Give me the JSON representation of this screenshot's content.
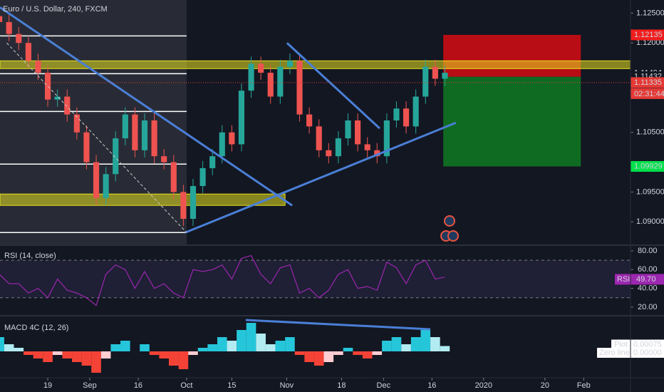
{
  "chart_data": [
    {
      "type": "candlestick",
      "title": "Euro / U.S. Dollar, 240, FXCM",
      "x": [
        3,
        6,
        9,
        12,
        15,
        18,
        21,
        24,
        27,
        30,
        33,
        36,
        39,
        42,
        45,
        48,
        51,
        54,
        57,
        60,
        63,
        66,
        69,
        72,
        75,
        78,
        81,
        84,
        87,
        90,
        93,
        96,
        99,
        102,
        105,
        108,
        111,
        114,
        117,
        120,
        123,
        126,
        129,
        132,
        135,
        138,
        141
      ],
      "open": [
        1.1245,
        1.1235,
        1.1215,
        1.12,
        1.117,
        1.115,
        1.1105,
        1.111,
        1.108,
        1.105,
        1.1,
        1.094,
        1.098,
        1.104,
        1.108,
        1.102,
        1.107,
        1.101,
        1.1,
        1.095,
        1.0905,
        1.096,
        1.099,
        1.101,
        1.105,
        1.103,
        1.112,
        1.1165,
        1.115,
        1.111,
        1.116,
        1.117,
        1.108,
        1.106,
        1.102,
        1.101,
        1.104,
        1.107,
        1.103,
        1.102,
        1.101,
        1.107,
        1.109,
        1.106,
        1.111,
        1.116,
        1.114
      ],
      "high": [
        1.1257,
        1.1247,
        1.1227,
        1.1212,
        1.1182,
        1.1162,
        1.1122,
        1.1122,
        1.1092,
        1.1062,
        1.1012,
        1.0992,
        1.1052,
        1.1092,
        1.1092,
        1.1082,
        1.1082,
        1.1022,
        1.1012,
        1.0962,
        1.0972,
        1.1002,
        1.1022,
        1.1062,
        1.1062,
        1.1132,
        1.1177,
        1.1177,
        1.1162,
        1.1172,
        1.1182,
        1.1182,
        1.1092,
        1.1072,
        1.1032,
        1.1052,
        1.1082,
        1.1082,
        1.1042,
        1.1032,
        1.1082,
        1.1102,
        1.1102,
        1.1122,
        1.1172,
        1.1172,
        1.1162
      ],
      "low": [
        1.1223,
        1.1203,
        1.1188,
        1.1158,
        1.1138,
        1.1093,
        1.1093,
        1.1068,
        1.1038,
        1.0988,
        1.0928,
        1.0928,
        1.0968,
        1.1028,
        1.1008,
        1.1008,
        1.0998,
        1.0988,
        1.0938,
        1.0893,
        1.0893,
        1.0948,
        1.0978,
        1.0998,
        1.1018,
        1.1018,
        1.1108,
        1.1138,
        1.1098,
        1.1098,
        1.1148,
        1.1068,
        1.1048,
        1.1008,
        1.0998,
        1.0998,
        1.1028,
        1.1018,
        1.1008,
        1.0998,
        1.0998,
        1.1058,
        1.1048,
        1.1048,
        1.1098,
        1.1128,
        1.1128
      ],
      "close": [
        1.1235,
        1.1215,
        1.12,
        1.117,
        1.115,
        1.1105,
        1.111,
        1.108,
        1.105,
        1.1,
        1.094,
        1.098,
        1.104,
        1.108,
        1.102,
        1.107,
        1.101,
        1.1,
        1.095,
        1.0905,
        1.096,
        1.099,
        1.101,
        1.105,
        1.103,
        1.112,
        1.1165,
        1.115,
        1.111,
        1.116,
        1.117,
        1.108,
        1.106,
        1.102,
        1.101,
        1.104,
        1.107,
        1.103,
        1.102,
        1.101,
        1.107,
        1.109,
        1.106,
        1.111,
        1.116,
        1.114,
        1.115
      ],
      "up_color": "#26a69a",
      "down_color": "#ef5350",
      "xlim": [
        3.2,
        198.5
      ],
      "xticks": [
        {
          "value": 18,
          "label": "19"
        },
        {
          "value": 31,
          "label": "Sep"
        },
        {
          "value": 46,
          "label": "16"
        },
        {
          "value": 61,
          "label": "Oct"
        },
        {
          "value": 75,
          "label": "15"
        },
        {
          "value": 92,
          "label": "Nov"
        },
        {
          "value": 109,
          "label": "18"
        },
        {
          "value": 122,
          "label": "Dec"
        },
        {
          "value": 137,
          "label": "16"
        },
        {
          "value": 153,
          "label": "2020"
        },
        {
          "value": 172,
          "label": "20"
        },
        {
          "value": 184,
          "label": "Feb"
        }
      ],
      "ylim": [
        1.0862,
        1.1272
      ],
      "yticks": [
        {
          "value": 1.125,
          "label": "1.12500"
        },
        {
          "value": 1.12,
          "label": "1.12000"
        },
        {
          "value": 1.105,
          "label": "1.10500"
        },
        {
          "value": 1.095,
          "label": "1.09500"
        },
        {
          "value": 1.09,
          "label": "1.09000"
        }
      ],
      "highlight_end": 61,
      "levels": [
        1.12118,
        1.11484,
        1.10851,
        1.09967,
        1.0882
      ],
      "zones": [
        {
          "x": [
            3.2,
            198.5
          ],
          "y": [
            1.11569,
            1.117
          ]
        },
        {
          "x": [
            3.2,
            91.5
          ],
          "y": [
            1.09275,
            1.09466
          ]
        }
      ],
      "zone_color": "#e6e01f",
      "trendlines": [
        {
          "x": [
            3.2,
            93.7
          ],
          "y": [
            1.12596,
            1.09275
          ],
          "color": "#4a7fd6"
        },
        {
          "x": [
            60.6,
            144.4
          ],
          "y": [
            1.0882,
            1.10661
          ],
          "color": "#4a7fd6"
        },
        {
          "x": [
            92.1,
            120.8
          ],
          "y": [
            1.12,
            1.10567
          ],
          "color": "#4a7fd6"
        },
        {
          "x": [
            5.3,
            61
          ],
          "y": [
            1.12,
            1.0882
          ],
          "color": "#cccccc",
          "dashed": true
        }
      ],
      "position": {
        "x": [
          140.5,
          183.1
        ],
        "stop": 1.12135,
        "entry": 1.11432,
        "target": 1.09929,
        "stop_color": "#b80d14",
        "target_color": "#0f6b22"
      },
      "price_labels": [
        {
          "value": 1.12135,
          "label": "1.12135",
          "bg": "#f11d1d",
          "fg": "#ffffff"
        },
        {
          "value": 1.11494,
          "label": "1.11494",
          "bg": "#131722",
          "fg": "#ffffff"
        },
        {
          "value": 1.11432,
          "label": "1.11432",
          "bg": "#131722",
          "fg": "#b2b5be"
        },
        {
          "value": 1.11335,
          "label": "1.11335",
          "bg": "#e53935",
          "fg": "#ffffff",
          "dotted": true
        },
        {
          "value": 1.09929,
          "label": "1.09929",
          "bg": "#00e04b",
          "fg": "#131722"
        }
      ],
      "countdown": "02:31:44"
    },
    {
      "type": "line",
      "title": "RSI (14, close)",
      "x": [
        3,
        6,
        9,
        12,
        15,
        18,
        21,
        24,
        27,
        30,
        33,
        36,
        39,
        42,
        45,
        48,
        51,
        54,
        57,
        60,
        63,
        66,
        69,
        72,
        75,
        78,
        81,
        84,
        87,
        90,
        93,
        96,
        99,
        102,
        105,
        108,
        111,
        114,
        117,
        120,
        123,
        126,
        129,
        132,
        135,
        138,
        141
      ],
      "values": [
        55,
        45,
        45,
        35,
        40,
        30,
        50,
        38,
        35,
        30,
        22,
        55,
        65,
        60,
        40,
        58,
        40,
        45,
        35,
        30,
        60,
        58,
        60,
        65,
        50,
        72,
        75,
        55,
        45,
        62,
        65,
        35,
        40,
        30,
        38,
        55,
        60,
        40,
        42,
        38,
        68,
        62,
        45,
        65,
        70,
        50,
        52
      ],
      "color": "#9c27b0",
      "ylim": [
        11.6,
        85.3
      ],
      "yticks": [
        {
          "value": 80,
          "label": "80.00"
        },
        {
          "value": 60,
          "label": "60.00"
        },
        {
          "value": 40,
          "label": "40.00"
        },
        {
          "value": 20,
          "label": "20.00"
        }
      ],
      "bands": [
        30,
        70
      ],
      "last_tag": "RSI",
      "last": {
        "value": 49.7,
        "label": "49.70"
      }
    },
    {
      "type": "bar",
      "title": "MACD 4C (12, 26)",
      "x": [
        3,
        6,
        9,
        12,
        15,
        18,
        21,
        24,
        27,
        30,
        33,
        36,
        39,
        42,
        45,
        48,
        51,
        54,
        57,
        60,
        63,
        66,
        69,
        72,
        75,
        78,
        81,
        84,
        87,
        90,
        93,
        96,
        99,
        102,
        105,
        108,
        111,
        114,
        117,
        120,
        123,
        126,
        129,
        132,
        135,
        138,
        141
      ],
      "values": [
        0.002,
        0.001,
        0.0005,
        -0.0005,
        -0.001,
        -0.0015,
        -0.0005,
        -0.001,
        -0.0015,
        -0.002,
        -0.003,
        -0.001,
        0.001,
        0.0015,
        0,
        0.001,
        -0.0005,
        -0.001,
        -0.002,
        -0.0025,
        -0.0005,
        0.0005,
        0.001,
        0.002,
        0.0015,
        0.003,
        0.004,
        0.0025,
        0.001,
        0.0015,
        0.002,
        -0.0005,
        -0.0015,
        -0.002,
        -0.0015,
        -0.0005,
        0.0005,
        -0.0005,
        -0.001,
        -0.0005,
        0.0015,
        0.002,
        0.001,
        0.002,
        0.003,
        0.002,
        0.00075
      ],
      "colors": {
        "up_rising": "#26c6da",
        "up_falling": "#b2ebf2",
        "down_falling": "#f44336",
        "down_rising": "#ffcdd2"
      },
      "ylim": [
        -0.0035,
        0.0045
      ],
      "plot_tag": "Plot",
      "last": 0.00075,
      "zero_tag": "Zero line",
      "zero_line": {
        "value": 0,
        "label": "0.00000"
      },
      "divergence": {
        "x": [
          79.3,
          136.5
        ],
        "y": [
          0.0044,
          0.0031
        ],
        "color": "#4a7fd6"
      }
    }
  ]
}
